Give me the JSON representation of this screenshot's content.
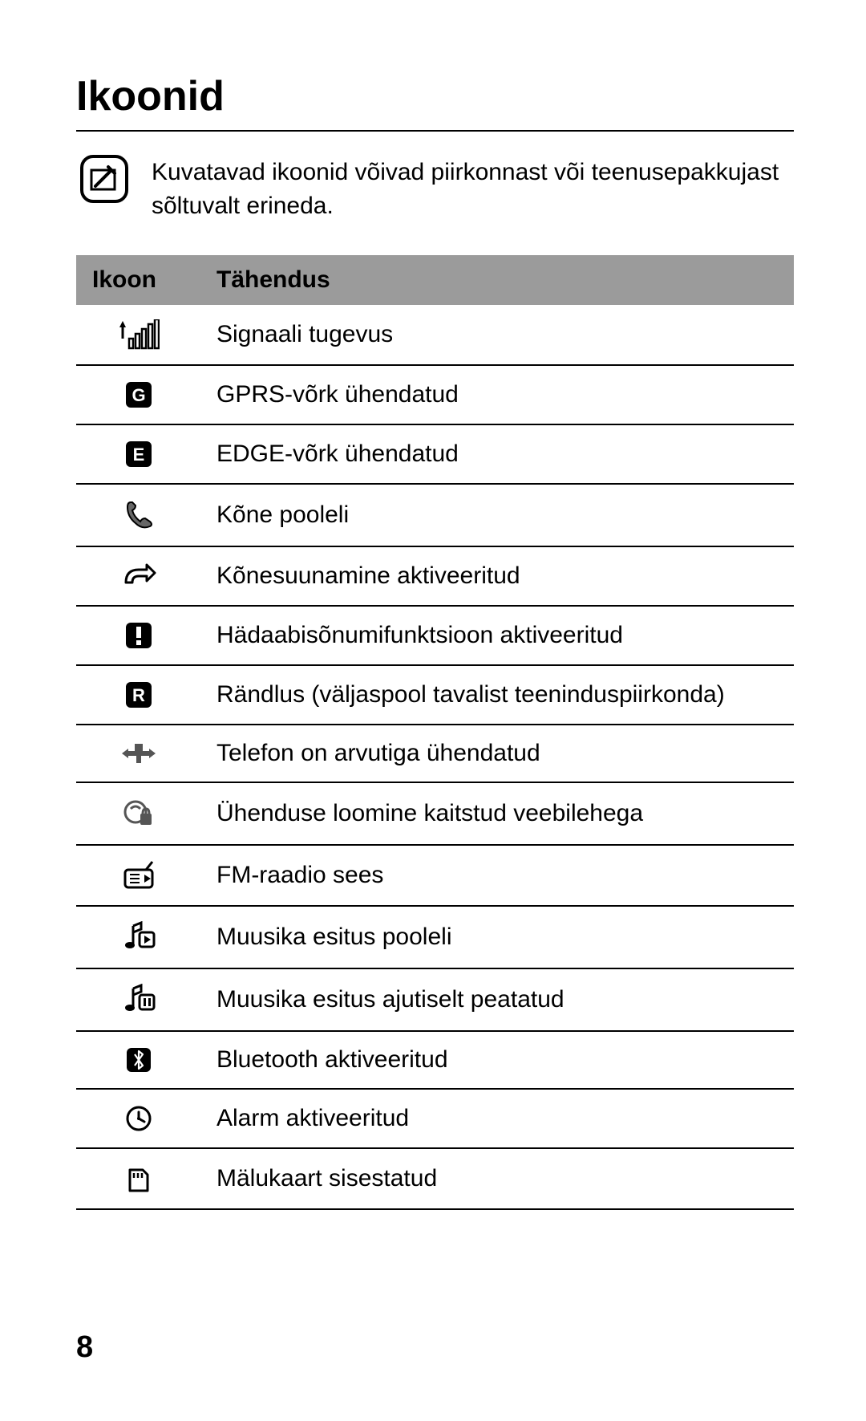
{
  "title": "Ikoonid",
  "note": "Kuvatavad ikoonid võivad piirkonnast või teenusepakkujast sõltuvalt erineda.",
  "table": {
    "headers": {
      "icon": "Ikoon",
      "meaning": "Tähendus"
    },
    "rows": [
      {
        "icon": "signal",
        "label": "Signaali tugevus"
      },
      {
        "icon": "g",
        "label": "GPRS-võrk ühendatud"
      },
      {
        "icon": "e",
        "label": "EDGE-võrk ühendatud"
      },
      {
        "icon": "phone",
        "label": "Kõne pooleli"
      },
      {
        "icon": "forward",
        "label": "Kõnesuunamine aktiveeritud"
      },
      {
        "icon": "excl",
        "label": "Hädaabisõnumifunktsioon aktiveeritud"
      },
      {
        "icon": "r",
        "label": "Rändlus (väljaspool tavalist teeninduspiirkonda)"
      },
      {
        "icon": "usb",
        "label": "Telefon on arvutiga ühendatud"
      },
      {
        "icon": "lock",
        "label": "Ühenduse loomine kaitstud veebilehega"
      },
      {
        "icon": "radio",
        "label": "FM-raadio sees"
      },
      {
        "icon": "music-play",
        "label": "Muusika esitus pooleli"
      },
      {
        "icon": "music-pause",
        "label": "Muusika esitus ajutiselt peatatud"
      },
      {
        "icon": "bluetooth",
        "label": "Bluetooth aktiveeritud"
      },
      {
        "icon": "alarm",
        "label": "Alarm aktiveeritud"
      },
      {
        "icon": "sd",
        "label": "Mälukaart sisestatud"
      }
    ]
  },
  "pageNumber": "8",
  "colors": {
    "headerBg": "#9b9b9b",
    "text": "#000000",
    "border": "#000000"
  }
}
